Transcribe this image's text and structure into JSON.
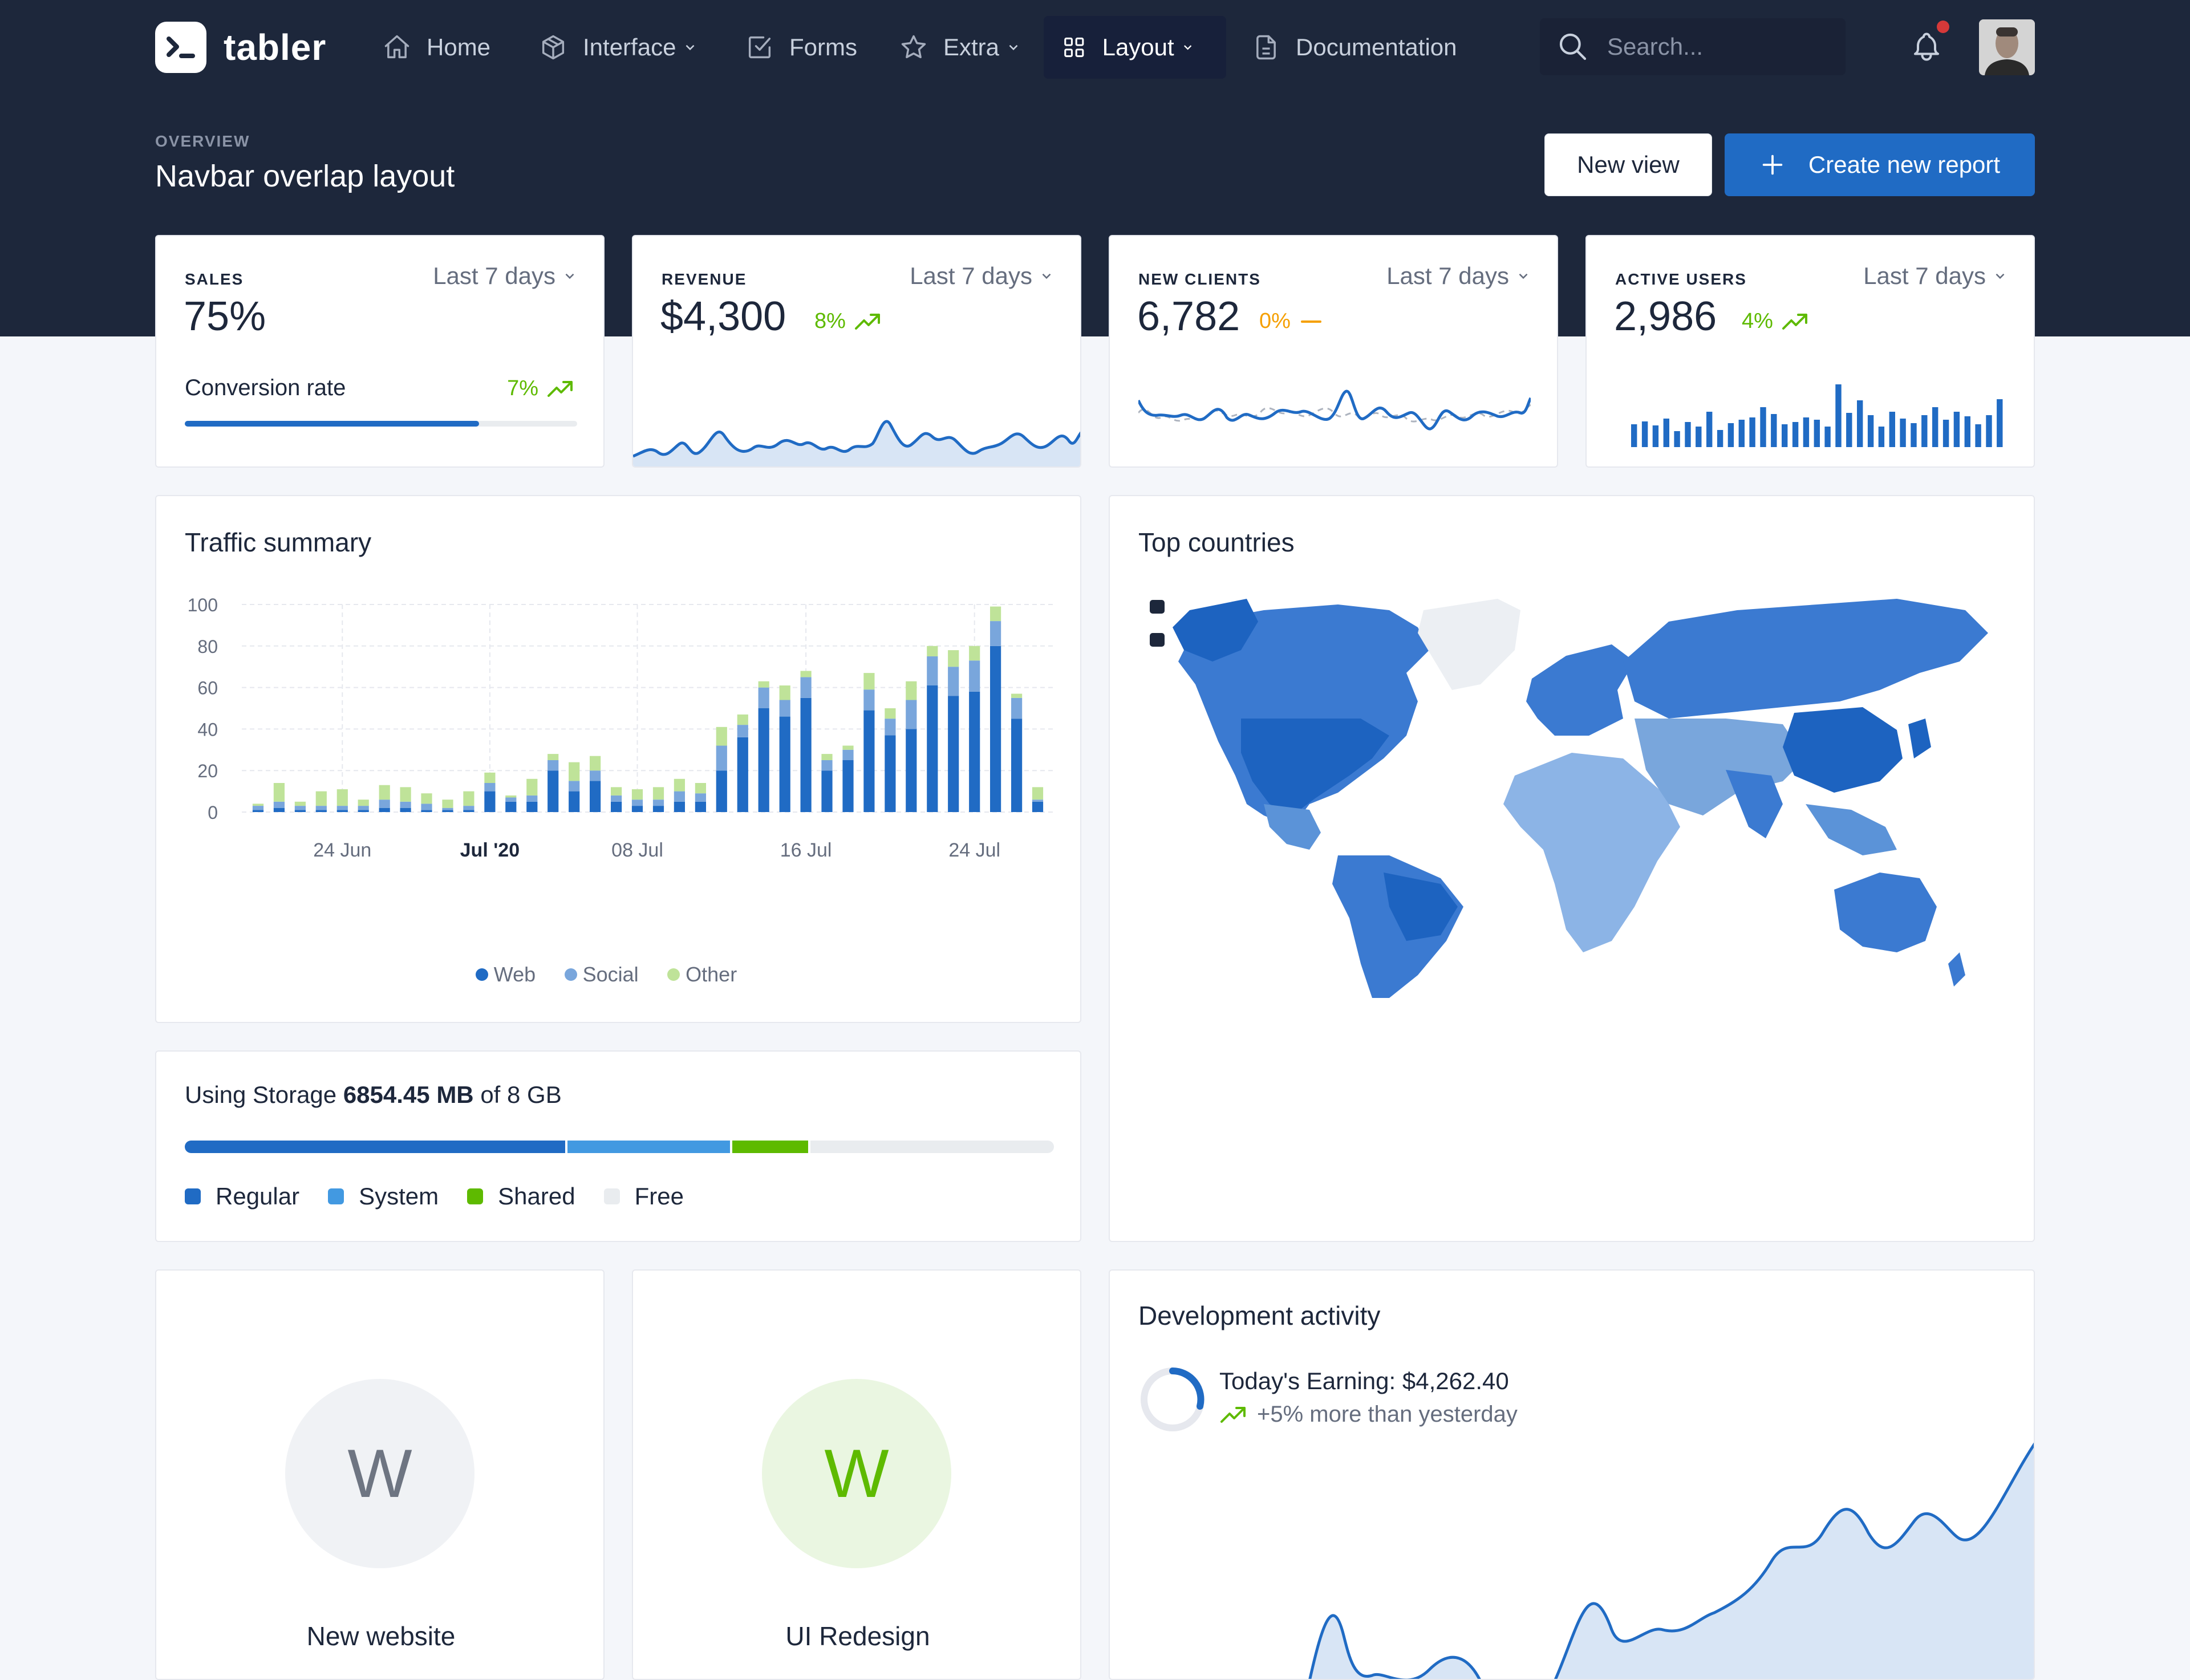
{
  "brand": {
    "name": "tabler"
  },
  "nav": {
    "items": [
      {
        "label": "Home",
        "icon": "home-icon"
      },
      {
        "label": "Interface",
        "icon": "package-icon"
      },
      {
        "label": "Forms",
        "icon": "checkbox-icon"
      },
      {
        "label": "Extra",
        "icon": "star-icon"
      },
      {
        "label": "Layout",
        "icon": "layout-icon"
      },
      {
        "label": "Documentation",
        "icon": "file-icon"
      }
    ],
    "search_placeholder": "Search..."
  },
  "header": {
    "pretitle": "OVERVIEW",
    "title": "Navbar overlap layout",
    "new_view_label": "New view",
    "create_report_label": "Create new report"
  },
  "stats": {
    "sales": {
      "label": "SALES",
      "period": "Last 7 days",
      "value": "75%",
      "sub_label": "Conversion rate",
      "sub_delta": "7%",
      "progress": 75
    },
    "revenue": {
      "label": "REVENUE",
      "period": "Last 7 days",
      "value": "$4,300",
      "delta": "8%"
    },
    "new_clients": {
      "label": "NEW CLIENTS",
      "period": "Last 7 days",
      "value": "6,782",
      "delta": "0%"
    },
    "active_users": {
      "label": "ACTIVE USERS",
      "period": "Last 7 days",
      "value": "2,986",
      "delta": "4%"
    }
  },
  "traffic": {
    "title": "Traffic summary",
    "legend": [
      "Web",
      "Social",
      "Other"
    ]
  },
  "chart_data": {
    "type": "bar",
    "stacked": true,
    "ylim": [
      0,
      100
    ],
    "yticks": [
      0,
      20,
      40,
      60,
      80,
      100
    ],
    "xtick_labels": [
      {
        "label": "24 Jun",
        "index": 4,
        "bold": false
      },
      {
        "label": "Jul '20",
        "index": 11,
        "bold": true
      },
      {
        "label": "08 Jul",
        "index": 18,
        "bold": false
      },
      {
        "label": "16 Jul",
        "index": 26,
        "bold": false
      },
      {
        "label": "24 Jul",
        "index": 34,
        "bold": false
      }
    ],
    "series": [
      {
        "name": "Web",
        "color": "#206bc4",
        "values": [
          1,
          2,
          1,
          1,
          1,
          1,
          2,
          2,
          1,
          1,
          1,
          10,
          5,
          5,
          20,
          10,
          15,
          5,
          3,
          3,
          5,
          5,
          20,
          36,
          50,
          46,
          55,
          20,
          25,
          49,
          37,
          40,
          61,
          56,
          58,
          80,
          45,
          5
        ]
      },
      {
        "name": "Social",
        "color": "#79a6dc",
        "values": [
          2,
          3,
          2,
          2,
          2,
          2,
          4,
          3,
          3,
          1,
          2,
          4,
          2,
          3,
          5,
          5,
          5,
          3,
          3,
          3,
          5,
          4,
          12,
          6,
          10,
          8,
          10,
          5,
          5,
          10,
          8,
          14,
          14,
          14,
          15,
          12,
          10,
          1
        ]
      },
      {
        "name": "Other",
        "color": "#bfe399",
        "values": [
          1,
          9,
          2,
          7,
          8,
          3,
          7,
          7,
          5,
          4,
          7,
          5,
          1,
          8,
          3,
          9,
          7,
          4,
          5,
          6,
          6,
          5,
          9,
          5,
          3,
          7,
          3,
          3,
          2,
          8,
          5,
          9,
          5,
          8,
          7,
          7,
          2,
          6
        ]
      }
    ]
  },
  "storage": {
    "prefix": "Using Storage",
    "used": "6854.45 MB",
    "suffix": "of 8 GB",
    "segments": [
      {
        "name": "Regular",
        "color": "#206bc4",
        "percent": 44
      },
      {
        "name": "System",
        "color": "#4299e1",
        "percent": 19
      },
      {
        "name": "Shared",
        "color": "#5eba00",
        "percent": 9
      },
      {
        "name": "Free",
        "color": "#e9ecef",
        "percent": 28
      }
    ]
  },
  "countries": {
    "title": "Top countries"
  },
  "projects": [
    {
      "initial": "W",
      "name": "New website",
      "bg": "#f0f2f5",
      "fg": "#6e7582"
    },
    {
      "initial": "W",
      "name": "UI Redesign",
      "bg": "#eaf6e1",
      "fg": "#5eba00"
    }
  ],
  "dev_activity": {
    "title": "Development activity",
    "earning_label": "Today's Earning: $4,262.40",
    "earning_delta": "+5% more than yesterday"
  }
}
